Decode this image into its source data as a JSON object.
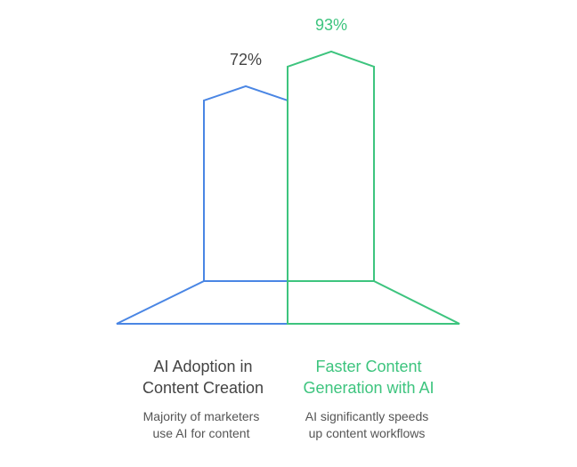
{
  "colors": {
    "blue": "#4a86e4",
    "green": "#3dc47e",
    "text_dark": "#444444",
    "text_desc": "#555555"
  },
  "chart_data": {
    "type": "bar",
    "categories": [
      "AI Adoption in Content Creation",
      "Faster Content Generation with AI"
    ],
    "values": [
      72,
      93
    ],
    "value_labels": [
      "72%",
      "93%"
    ],
    "items": [
      {
        "title_line1": "AI Adoption in",
        "title_line2": "Content Creation",
        "desc_line1": "Majority of marketers",
        "desc_line2": "use AI for content",
        "value_label": "72%",
        "color": "#4a86e4"
      },
      {
        "title_line1": "Faster Content",
        "title_line2": "Generation with AI",
        "desc_line1": "AI significantly speeds",
        "desc_line2": "up content workflows",
        "value_label": "93%",
        "color": "#3dc47e"
      }
    ]
  }
}
